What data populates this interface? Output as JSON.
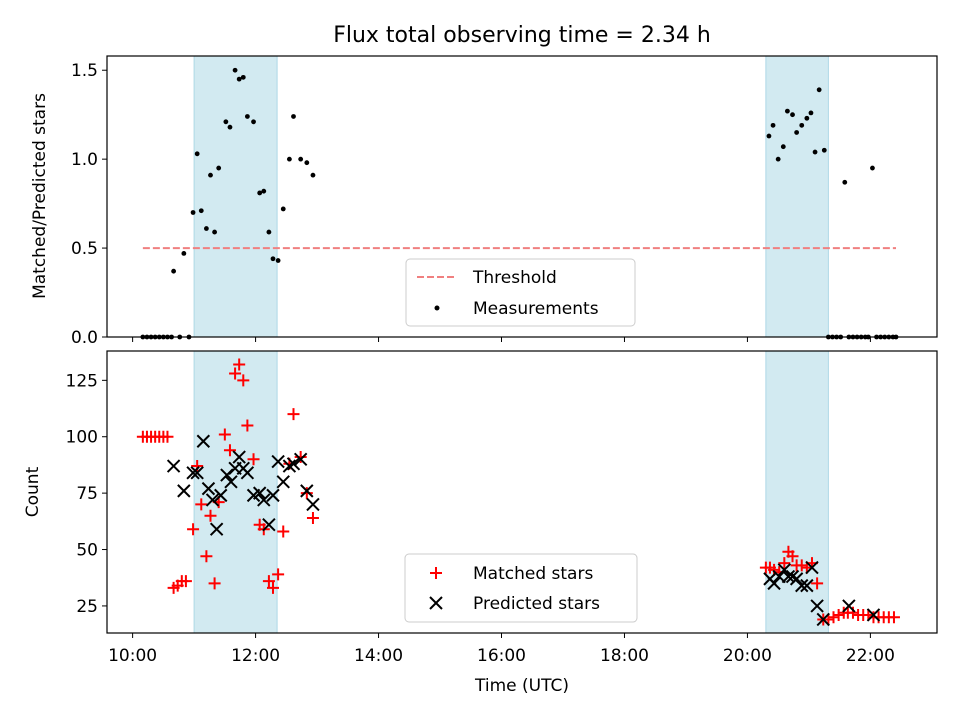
{
  "chart_data": [
    {
      "type": "scatter",
      "title": "Flux total observing time = 2.34 h",
      "ylabel": "Matched/Predicted stars",
      "xlabel": "",
      "xlim": [
        "09:35",
        "23:05"
      ],
      "ylim": [
        0,
        1.58
      ],
      "yticks": [
        {
          "v": 0.0,
          "label": "0.0"
        },
        {
          "v": 0.5,
          "label": "0.5"
        },
        {
          "v": 1.0,
          "label": "1.0"
        },
        {
          "v": 1.5,
          "label": "1.5"
        }
      ],
      "x_tick_labels_shown": false,
      "shaded_regions": [
        [
          "11:00",
          "12:21"
        ],
        [
          "20:18",
          "21:19"
        ]
      ],
      "shade_color": "#add8e6",
      "grid": false,
      "legend_position": "lower-center",
      "threshold": {
        "name": "Threshold",
        "value": 0.5,
        "x_range": [
          "10:10",
          "22:25"
        ],
        "color": "#f08080"
      },
      "series": [
        {
          "name": "Measurements",
          "color": "#000000",
          "points": [
            [
              "10:10",
              0
            ],
            [
              "10:14",
              0
            ],
            [
              "10:18",
              0
            ],
            [
              "10:22",
              0
            ],
            [
              "10:26",
              0
            ],
            [
              "10:30",
              0
            ],
            [
              "10:34",
              0
            ],
            [
              "10:38",
              0
            ],
            [
              "10:40",
              0.37
            ],
            [
              "10:46",
              0
            ],
            [
              "10:50",
              0.47
            ],
            [
              "10:55",
              0
            ],
            [
              "10:59",
              0.7
            ],
            [
              "11:03",
              1.03
            ],
            [
              "11:07",
              0.71
            ],
            [
              "11:12",
              0.61
            ],
            [
              "11:16",
              0.91
            ],
            [
              "11:20",
              0.59
            ],
            [
              "11:24",
              0.95
            ],
            [
              "11:31",
              1.21
            ],
            [
              "11:35",
              1.18
            ],
            [
              "11:40",
              1.5
            ],
            [
              "11:44",
              1.45
            ],
            [
              "11:48",
              1.46
            ],
            [
              "11:52",
              1.24
            ],
            [
              "11:58",
              1.21
            ],
            [
              "12:04",
              0.81
            ],
            [
              "12:08",
              0.82
            ],
            [
              "12:13",
              0.59
            ],
            [
              "12:17",
              0.44
            ],
            [
              "12:22",
              0.43
            ],
            [
              "12:27",
              0.72
            ],
            [
              "12:33",
              1.0
            ],
            [
              "12:37",
              1.24
            ],
            [
              "12:44",
              1.0
            ],
            [
              "12:50",
              0.98
            ],
            [
              "12:56",
              0.91
            ],
            [
              "20:21",
              1.13
            ],
            [
              "20:25",
              1.19
            ],
            [
              "20:30",
              1.0
            ],
            [
              "20:35",
              1.07
            ],
            [
              "20:39",
              1.27
            ],
            [
              "20:44",
              1.25
            ],
            [
              "20:48",
              1.15
            ],
            [
              "20:53",
              1.19
            ],
            [
              "20:58",
              1.23
            ],
            [
              "21:02",
              1.26
            ],
            [
              "21:06",
              1.04
            ],
            [
              "21:10",
              1.39
            ],
            [
              "21:15",
              1.05
            ],
            [
              "21:19",
              0
            ],
            [
              "21:23",
              0
            ],
            [
              "21:27",
              0
            ],
            [
              "21:31",
              0
            ],
            [
              "21:35",
              0.87
            ],
            [
              "21:39",
              0
            ],
            [
              "21:43",
              0
            ],
            [
              "21:47",
              0
            ],
            [
              "21:51",
              0
            ],
            [
              "21:55",
              0
            ],
            [
              "21:58",
              0
            ],
            [
              "22:02",
              0.95
            ],
            [
              "22:06",
              0
            ],
            [
              "22:10",
              0
            ],
            [
              "22:14",
              0
            ],
            [
              "22:18",
              0
            ],
            [
              "22:22",
              0
            ],
            [
              "22:25",
              0
            ]
          ]
        }
      ]
    },
    {
      "type": "scatter",
      "title": "",
      "ylabel": "Count",
      "xlabel": "Time (UTC)",
      "xlim": [
        "09:35",
        "23:05"
      ],
      "ylim": [
        13,
        138
      ],
      "yticks": [
        {
          "v": 25,
          "label": "25"
        },
        {
          "v": 50,
          "label": "50"
        },
        {
          "v": 75,
          "label": "75"
        },
        {
          "v": 100,
          "label": "100"
        },
        {
          "v": 125,
          "label": "125"
        }
      ],
      "xticks": [
        {
          "v": "10:00",
          "label": "10:00"
        },
        {
          "v": "12:00",
          "label": "12:00"
        },
        {
          "v": "14:00",
          "label": "14:00"
        },
        {
          "v": "16:00",
          "label": "16:00"
        },
        {
          "v": "18:00",
          "label": "18:00"
        },
        {
          "v": "20:00",
          "label": "20:00"
        },
        {
          "v": "22:00",
          "label": "22:00"
        }
      ],
      "shaded_regions": [
        [
          "11:00",
          "12:21"
        ],
        [
          "20:18",
          "21:19"
        ]
      ],
      "shade_color": "#add8e6",
      "grid": false,
      "legend_position": "lower-center",
      "series": [
        {
          "name": "Matched stars",
          "marker": "plus",
          "color": "#ff0000",
          "points": [
            [
              "10:10",
              100
            ],
            [
              "10:14",
              100
            ],
            [
              "10:18",
              100
            ],
            [
              "10:22",
              100
            ],
            [
              "10:26",
              100
            ],
            [
              "10:30",
              100
            ],
            [
              "10:34",
              100
            ],
            [
              "10:40",
              33
            ],
            [
              "10:44",
              34
            ],
            [
              "10:48",
              36
            ],
            [
              "10:52",
              36
            ],
            [
              "10:59",
              59
            ],
            [
              "11:03",
              87
            ],
            [
              "11:07",
              70
            ],
            [
              "11:12",
              47
            ],
            [
              "11:16",
              65
            ],
            [
              "11:20",
              35
            ],
            [
              "11:24",
              71
            ],
            [
              "11:30",
              101
            ],
            [
              "11:35",
              94
            ],
            [
              "11:40",
              128
            ],
            [
              "11:44",
              132
            ],
            [
              "11:48",
              125
            ],
            [
              "11:52",
              105
            ],
            [
              "11:58",
              90
            ],
            [
              "12:04",
              61
            ],
            [
              "12:08",
              59
            ],
            [
              "12:13",
              36
            ],
            [
              "12:17",
              33
            ],
            [
              "12:22",
              39
            ],
            [
              "12:27",
              58
            ],
            [
              "12:33",
              88
            ],
            [
              "12:37",
              110
            ],
            [
              "12:44",
              91
            ],
            [
              "12:50",
              75
            ],
            [
              "12:56",
              64
            ],
            [
              "20:18",
              42
            ],
            [
              "20:22",
              42
            ],
            [
              "20:26",
              41
            ],
            [
              "20:31",
              40
            ],
            [
              "20:36",
              44
            ],
            [
              "20:40",
              49
            ],
            [
              "20:44",
              47
            ],
            [
              "20:48",
              43
            ],
            [
              "20:53",
              43
            ],
            [
              "20:58",
              42
            ],
            [
              "21:03",
              44
            ],
            [
              "21:08",
              35
            ],
            [
              "21:14",
              19
            ],
            [
              "21:19",
              19
            ],
            [
              "21:24",
              20
            ],
            [
              "21:29",
              21
            ],
            [
              "21:34",
              22
            ],
            [
              "21:38",
              22
            ],
            [
              "21:43",
              22
            ],
            [
              "21:48",
              21
            ],
            [
              "21:53",
              21
            ],
            [
              "21:58",
              21
            ],
            [
              "22:03",
              20
            ],
            [
              "22:08",
              20
            ],
            [
              "22:13",
              20
            ],
            [
              "22:18",
              20
            ],
            [
              "22:23",
              20
            ]
          ]
        },
        {
          "name": "Predicted stars",
          "marker": "x",
          "color": "#000000",
          "points": [
            [
              "10:40",
              87
            ],
            [
              "10:50",
              76
            ],
            [
              "10:59",
              84
            ],
            [
              "11:03",
              84
            ],
            [
              "11:09",
              98
            ],
            [
              "11:14",
              77
            ],
            [
              "11:18",
              72
            ],
            [
              "11:22",
              59
            ],
            [
              "11:26",
              74
            ],
            [
              "11:32",
              83
            ],
            [
              "11:36",
              80
            ],
            [
              "11:40",
              86
            ],
            [
              "11:44",
              91
            ],
            [
              "11:48",
              86
            ],
            [
              "11:52",
              84
            ],
            [
              "11:58",
              74
            ],
            [
              "12:04",
              75
            ],
            [
              "12:08",
              72
            ],
            [
              "12:13",
              61
            ],
            [
              "12:17",
              74
            ],
            [
              "12:22",
              89
            ],
            [
              "12:27",
              80
            ],
            [
              "12:33",
              87
            ],
            [
              "12:37",
              88
            ],
            [
              "12:44",
              90
            ],
            [
              "12:50",
              76
            ],
            [
              "12:56",
              70
            ],
            [
              "20:22",
              37
            ],
            [
              "20:26",
              35
            ],
            [
              "20:31",
              38
            ],
            [
              "20:36",
              41
            ],
            [
              "20:40",
              38
            ],
            [
              "20:44",
              38
            ],
            [
              "20:48",
              37
            ],
            [
              "20:53",
              34
            ],
            [
              "20:58",
              34
            ],
            [
              "21:03",
              42
            ],
            [
              "21:08",
              25
            ],
            [
              "21:14",
              19
            ],
            [
              "21:39",
              25
            ],
            [
              "22:03",
              21
            ]
          ]
        }
      ]
    }
  ]
}
